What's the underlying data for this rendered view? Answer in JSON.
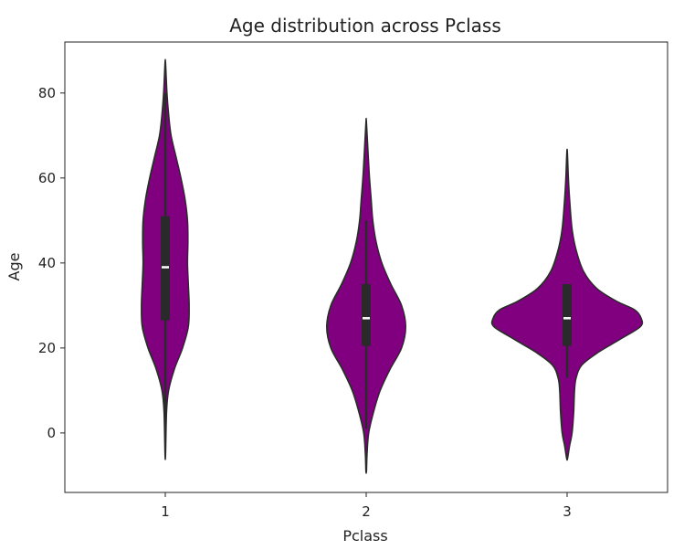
{
  "chart_data": {
    "type": "violin",
    "title": "Age distribution across Pclass",
    "xlabel": "Pclass",
    "ylabel": "Age",
    "categories": [
      "1",
      "2",
      "3"
    ],
    "ylim": [
      -14,
      92
    ],
    "yticks": [
      0,
      20,
      40,
      60,
      80
    ],
    "grid": false,
    "fill_color": "#800080",
    "edge_color": "#2a2a2a",
    "violins": [
      {
        "category": "1",
        "range": [
          -5,
          87
        ],
        "median": 39,
        "q1": 26.5,
        "q3": 51,
        "whisker_low": 0.9,
        "whisker_high": 80,
        "density_profile": [
          [
            -5,
            0.3
          ],
          [
            5,
            1.5
          ],
          [
            10,
            4
          ],
          [
            15,
            11
          ],
          [
            20,
            21
          ],
          [
            25,
            28
          ],
          [
            30,
            29
          ],
          [
            35,
            28
          ],
          [
            40,
            27
          ],
          [
            45,
            27.5
          ],
          [
            50,
            27
          ],
          [
            55,
            24
          ],
          [
            60,
            19
          ],
          [
            65,
            13
          ],
          [
            70,
            7
          ],
          [
            75,
            4
          ],
          [
            80,
            2
          ],
          [
            87,
            0.3
          ]
        ]
      },
      {
        "category": "2",
        "range": [
          -9,
          73
        ],
        "median": 27,
        "q1": 20.5,
        "q3": 35,
        "whisker_low": 1,
        "whisker_high": 50,
        "density_profile": [
          [
            -9,
            0.3
          ],
          [
            -5,
            1
          ],
          [
            0,
            3
          ],
          [
            5,
            9
          ],
          [
            10,
            17
          ],
          [
            15,
            29
          ],
          [
            20,
            43
          ],
          [
            25,
            48
          ],
          [
            30,
            43
          ],
          [
            35,
            30
          ],
          [
            40,
            19
          ],
          [
            45,
            12
          ],
          [
            50,
            8
          ],
          [
            55,
            6
          ],
          [
            60,
            4
          ],
          [
            65,
            2.5
          ],
          [
            73,
            0.3
          ]
        ]
      },
      {
        "category": "3",
        "range": [
          -6,
          66
        ],
        "median": 27,
        "q1": 20.5,
        "q3": 35,
        "whisker_low": 13,
        "whisker_high": 35,
        "density_profile": [
          [
            -6,
            0.5
          ],
          [
            -3,
            3
          ],
          [
            0,
            6
          ],
          [
            5,
            8
          ],
          [
            10,
            9
          ],
          [
            13,
            11
          ],
          [
            16,
            18
          ],
          [
            19,
            38
          ],
          [
            22,
            64
          ],
          [
            25,
            89
          ],
          [
            27,
            90
          ],
          [
            29,
            82
          ],
          [
            31,
            60
          ],
          [
            34,
            36
          ],
          [
            38,
            20
          ],
          [
            43,
            11
          ],
          [
            48,
            6
          ],
          [
            55,
            3
          ],
          [
            60,
            1.5
          ],
          [
            66,
            0.3
          ]
        ]
      }
    ]
  }
}
